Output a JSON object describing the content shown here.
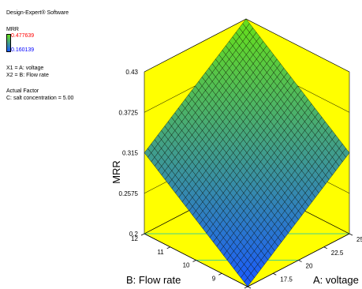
{
  "legend": {
    "software": "Design-Expert® Software",
    "response": "MRR",
    "max_value": "0.477639",
    "min_value": "0.160139",
    "x1": "X1 = A: voltage",
    "x2": "X2 = B: Flow rate",
    "actual_factor_title": "Actual Factor",
    "actual_factor": "C: salt concentration = 5.00",
    "max_color": "#ff0000",
    "min_color": "#0000ff"
  },
  "chart_data": {
    "type": "surface",
    "zlabel": "MRR",
    "xlabel": "A: voltage",
    "ylabel": "B: Flow rate",
    "z_ticks": [
      "0.2",
      "0.2575",
      "0.315",
      "0.3725",
      "0.43"
    ],
    "x_ticks": [
      "15",
      "17.5",
      "20",
      "22.5",
      "25"
    ],
    "y_ticks": [
      "8",
      "9",
      "10",
      "11",
      "12"
    ],
    "xlim": [
      15,
      25
    ],
    "ylim": [
      8,
      12
    ],
    "zlim": [
      0.2,
      0.43
    ],
    "surface_corners": {
      "voltage_15_flow_8": 0.2,
      "voltage_25_flow_8": 0.315,
      "voltage_15_flow_12": 0.315,
      "voltage_25_flow_12": 0.43
    },
    "colors": {
      "walls": "#ffff00",
      "grid": "#000000",
      "surface_low": "#1a5aff",
      "surface_high": "#66e01a"
    }
  }
}
